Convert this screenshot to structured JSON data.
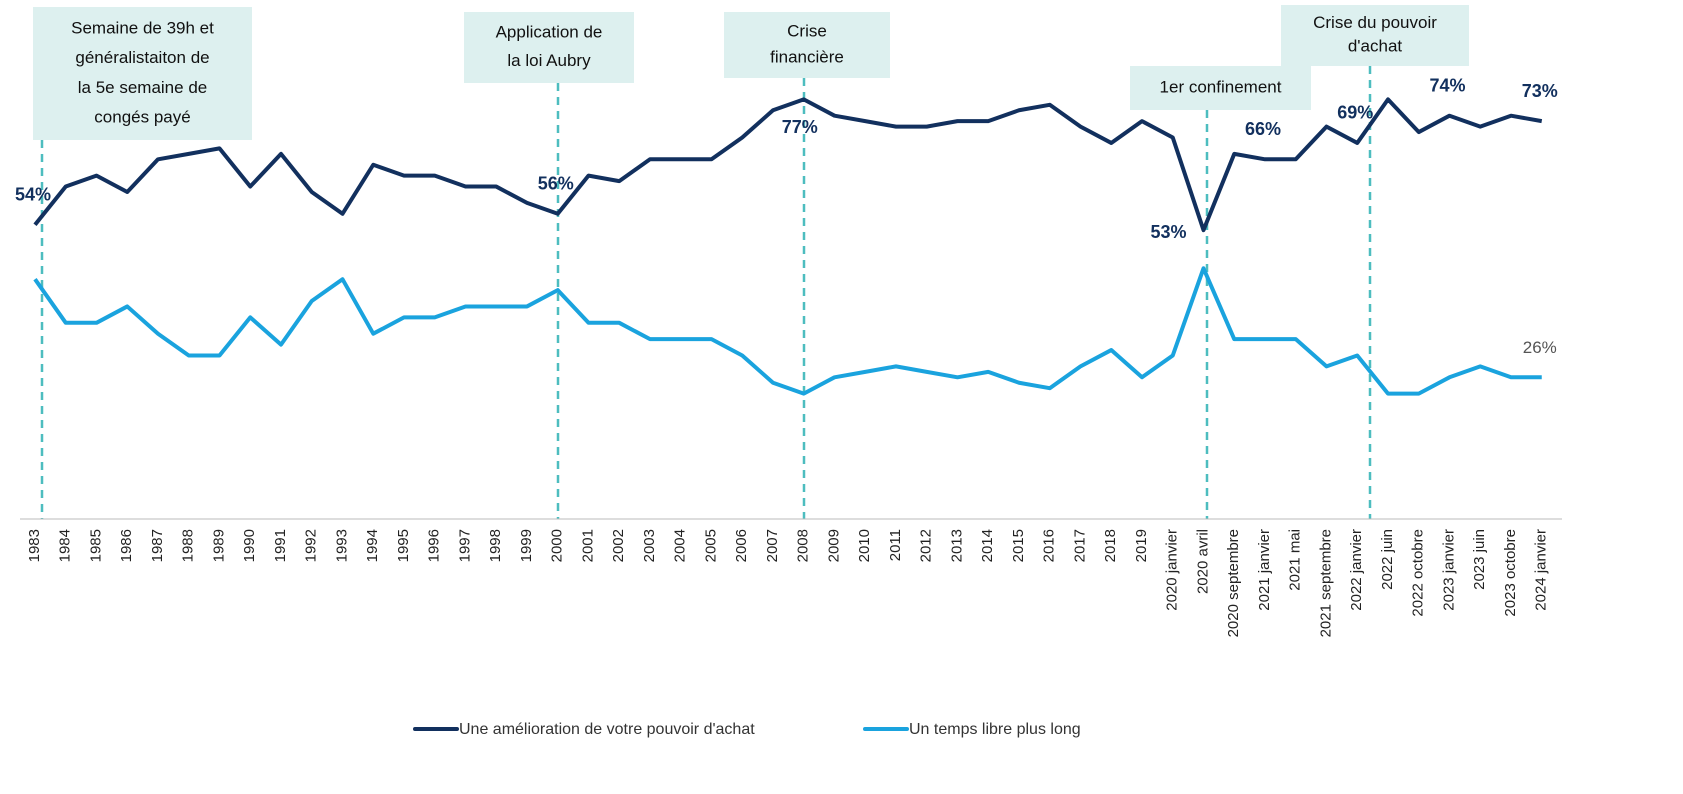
{
  "chart_data": {
    "type": "line",
    "categories": [
      "1983",
      "1984",
      "1985",
      "1986",
      "1987",
      "1988",
      "1989",
      "1990",
      "1991",
      "1992",
      "1993",
      "1994",
      "1995",
      "1996",
      "1997",
      "1998",
      "1999",
      "2000",
      "2001",
      "2002",
      "2003",
      "2004",
      "2005",
      "2006",
      "2007",
      "2008",
      "2009",
      "2010",
      "2011",
      "2012",
      "2013",
      "2014",
      "2015",
      "2016",
      "2017",
      "2018",
      "2019",
      "2020 janvier",
      "2020 avril",
      "2020 septembre",
      "2021 janvier",
      "2021 mai",
      "2021 septembre",
      "2022 janvier",
      "2022 juin",
      "2022 octobre",
      "2023 janvier",
      "2023 juin",
      "2023 octobre",
      "2024 janvier"
    ],
    "ylim": [
      0,
      95
    ],
    "series": [
      {
        "name": "Une amélioration de votre pouvoir d'achat",
        "color": "#12305e",
        "values": [
          54,
          61,
          63,
          60,
          66,
          67,
          68,
          61,
          67,
          60,
          56,
          65,
          63,
          63,
          61,
          61,
          58,
          56,
          63,
          62,
          66,
          66,
          66,
          70,
          75,
          77,
          74,
          73,
          72,
          72,
          73,
          73,
          75,
          76,
          72,
          69,
          73,
          70,
          53,
          67,
          66,
          66,
          72,
          69,
          77,
          71,
          74,
          72,
          74,
          73
        ],
        "value_labels": [
          "54%",
          null,
          null,
          null,
          null,
          null,
          null,
          null,
          null,
          null,
          null,
          null,
          null,
          null,
          null,
          null,
          null,
          "56%",
          null,
          null,
          null,
          null,
          null,
          null,
          null,
          "77%",
          null,
          null,
          null,
          null,
          null,
          null,
          null,
          null,
          null,
          null,
          null,
          null,
          "53%",
          null,
          "66%",
          null,
          null,
          "69%",
          null,
          null,
          "74%",
          null,
          null,
          "73%"
        ]
      },
      {
        "name": "Un temps libre plus long",
        "color": "#1aa3de",
        "values": [
          44,
          36,
          36,
          39,
          34,
          30,
          30,
          37,
          32,
          40,
          44,
          34,
          37,
          37,
          39,
          39,
          39,
          42,
          36,
          36,
          33,
          33,
          33,
          30,
          25,
          23,
          26,
          27,
          28,
          27,
          26,
          27,
          25,
          24,
          28,
          31,
          26,
          30,
          46,
          33,
          33,
          33,
          28,
          30,
          23,
          23,
          26,
          28,
          26,
          26
        ],
        "value_labels": [
          null,
          null,
          null,
          null,
          null,
          null,
          null,
          null,
          null,
          null,
          null,
          null,
          null,
          null,
          null,
          null,
          null,
          null,
          null,
          null,
          null,
          null,
          null,
          null,
          null,
          null,
          null,
          null,
          null,
          null,
          null,
          null,
          null,
          null,
          null,
          null,
          null,
          null,
          null,
          null,
          null,
          null,
          null,
          null,
          null,
          null,
          null,
          null,
          null,
          "26%"
        ]
      }
    ],
    "annotations": [
      {
        "lines": [
          "Semaine de 39h et",
          "généralistaiton de",
          "la 5e semaine de",
          "congés payé"
        ]
      },
      {
        "lines": [
          "Application de",
          "la loi Aubry"
        ]
      },
      {
        "lines": [
          "Crise",
          "financière"
        ]
      },
      {
        "lines": [
          "1er confinement"
        ]
      },
      {
        "lines": [
          "Crise du pouvoir",
          "d'achat"
        ]
      }
    ]
  }
}
